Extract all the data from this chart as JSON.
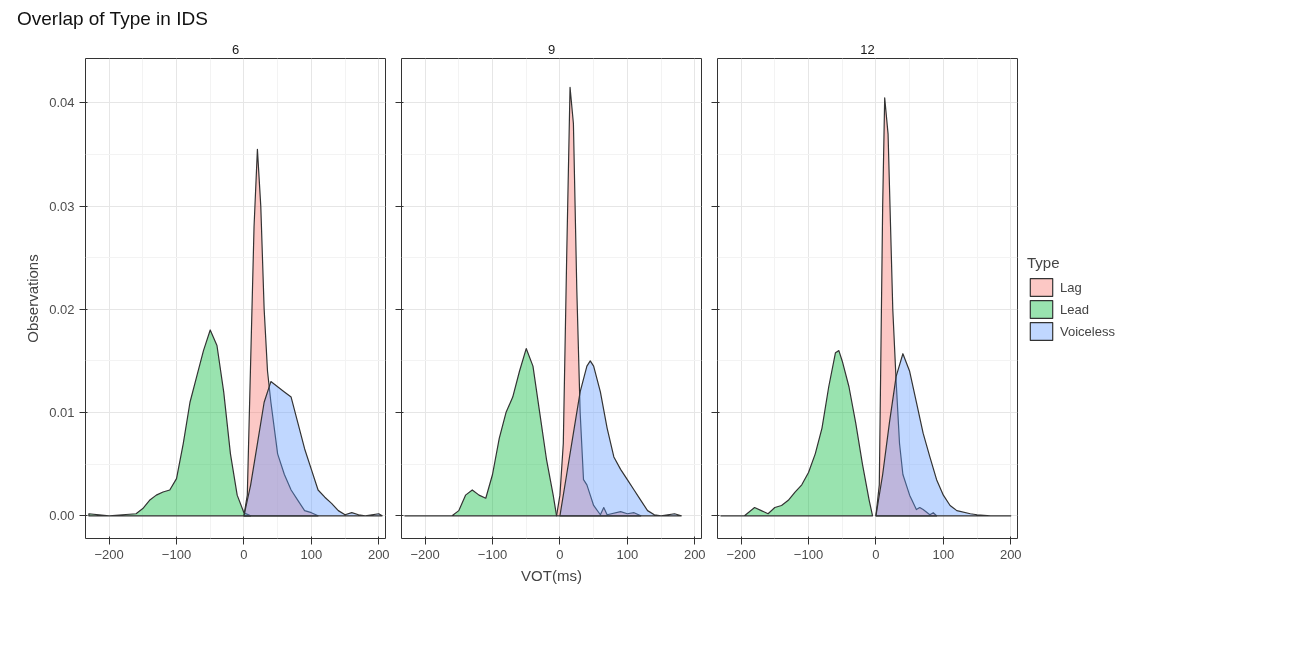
{
  "chart_data": [
    {
      "type": "area",
      "title": "Overlap of Type in IDS",
      "subtitle": "6",
      "ylabel": "Observations",
      "xlim": [
        -235,
        210
      ],
      "ylim": [
        -0.0022,
        0.0443
      ],
      "xticks": [
        -200,
        -100,
        0,
        100,
        200
      ],
      "yticks": [
        {
          "value": 0,
          "label": "0.00"
        },
        {
          "value": 0.01,
          "label": "0.01"
        },
        {
          "value": 0.02,
          "label": "0.02"
        },
        {
          "value": 0.03,
          "label": "0.03"
        },
        {
          "value": 0.04,
          "label": "0.04"
        }
      ],
      "grid": true,
      "series": [
        {
          "color": "#f8766d",
          "x": [
            0,
            5,
            10,
            15,
            20,
            25,
            30,
            35,
            40,
            50,
            60,
            70,
            80,
            90,
            100,
            110
          ],
          "values": [
            0,
            0.002,
            0.015,
            0.028,
            0.0355,
            0.03,
            0.02,
            0.014,
            0.011,
            0.006,
            0.004,
            0.0025,
            0.0015,
            0.0005,
            0.0003,
            0
          ]
        },
        {
          "color": "#00ba38",
          "x": [
            -230,
            -200,
            -180,
            -160,
            -150,
            -140,
            -130,
            -120,
            -110,
            -100,
            -90,
            -80,
            -70,
            -60,
            -50,
            -40,
            -30,
            -20,
            -10,
            0,
            10
          ],
          "values": [
            0.0002,
            0,
            0.0001,
            0.0002,
            0.0007,
            0.0015,
            0.002,
            0.0023,
            0.0025,
            0.0036,
            0.007,
            0.011,
            0.0135,
            0.016,
            0.018,
            0.0165,
            0.012,
            0.006,
            0.002,
            0.0003,
            0
          ]
        },
        {
          "color": "#619cff",
          "x": [
            0,
            10,
            20,
            30,
            40,
            50,
            60,
            70,
            80,
            90,
            100,
            110,
            120,
            130,
            140,
            150,
            160,
            170,
            180,
            200,
            205
          ],
          "values": [
            0,
            0.003,
            0.007,
            0.011,
            0.013,
            0.0125,
            0.012,
            0.0115,
            0.009,
            0.0065,
            0.0045,
            0.0025,
            0.0018,
            0.0012,
            0.0005,
            0.0001,
            0.0003,
            0.0001,
            0,
            0.0002,
            0
          ]
        }
      ]
    },
    {
      "type": "area",
      "subtitle": "9",
      "xlabel": "VOT(ms)",
      "xlim": [
        -235,
        210
      ],
      "ylim": [
        -0.0022,
        0.0443
      ],
      "xticks": [
        -200,
        -100,
        0,
        100,
        200
      ],
      "yticks": [
        0,
        0.01,
        0.02,
        0.03,
        0.04
      ],
      "grid": true,
      "tick_labels": "x",
      "series": [
        {
          "color": "#f8766d",
          "x": [
            -5,
            0,
            5,
            10,
            15,
            20,
            25,
            30,
            35,
            40,
            45,
            50,
            60,
            65,
            70,
            90,
            100,
            110,
            120
          ],
          "values": [
            0,
            0.002,
            0.007,
            0.025,
            0.0415,
            0.038,
            0.022,
            0.01,
            0.0035,
            0.003,
            0.002,
            0.001,
            0.0001,
            0.0008,
            0.0001,
            0.0004,
            0.0002,
            0.0003,
            0
          ]
        },
        {
          "color": "#00ba38",
          "x": [
            -230,
            -160,
            -150,
            -140,
            -130,
            -120,
            -110,
            -100,
            -90,
            -80,
            -70,
            -60,
            -50,
            -40,
            -30,
            -20,
            -10,
            -5
          ],
          "values": [
            0,
            0,
            0.0005,
            0.002,
            0.0025,
            0.002,
            0.0017,
            0.004,
            0.0075,
            0.01,
            0.0115,
            0.014,
            0.0162,
            0.0145,
            0.01,
            0.0055,
            0.002,
            0
          ]
        },
        {
          "color": "#619cff",
          "x": [
            0,
            10,
            20,
            30,
            40,
            45,
            50,
            60,
            70,
            80,
            90,
            100,
            110,
            120,
            130,
            140,
            150,
            170,
            180
          ],
          "values": [
            0,
            0.004,
            0.008,
            0.012,
            0.0145,
            0.015,
            0.0145,
            0.012,
            0.0085,
            0.0057,
            0.0045,
            0.0035,
            0.0025,
            0.0015,
            0.0005,
            0.0001,
            0,
            0.0002,
            0
          ]
        }
      ]
    },
    {
      "type": "area",
      "subtitle": "12",
      "xlim": [
        -235,
        210
      ],
      "ylim": [
        -0.0022,
        0.0443
      ],
      "xticks": [
        -200,
        -100,
        0,
        100,
        200
      ],
      "yticks": [
        0,
        0.01,
        0.02,
        0.03,
        0.04
      ],
      "grid": true,
      "tick_labels": "x",
      "legend": "right",
      "legend_title": "Type",
      "series": [
        {
          "name": "Lag",
          "color": "#f8766d",
          "x": [
            0,
            5,
            10,
            13,
            18,
            25,
            30,
            35,
            40,
            50,
            60,
            65,
            70,
            80,
            85,
            90
          ],
          "values": [
            0,
            0.003,
            0.03,
            0.0405,
            0.037,
            0.02,
            0.013,
            0.007,
            0.004,
            0.002,
            0.0006,
            0.0008,
            0.0006,
            0.0001,
            0.0003,
            0
          ]
        },
        {
          "name": "Lead",
          "color": "#00ba38",
          "x": [
            -230,
            -195,
            -180,
            -170,
            -160,
            -150,
            -140,
            -130,
            -120,
            -110,
            -100,
            -90,
            -80,
            -70,
            -60,
            -55,
            -50,
            -40,
            -30,
            -20,
            -10,
            -5
          ],
          "values": [
            0,
            0,
            0.0008,
            0.0005,
            0.0002,
            0.0008,
            0.001,
            0.0015,
            0.0023,
            0.003,
            0.0042,
            0.006,
            0.0085,
            0.0125,
            0.0158,
            0.016,
            0.015,
            0.0125,
            0.009,
            0.005,
            0.0015,
            0
          ]
        },
        {
          "name": "Voiceless",
          "color": "#619cff",
          "x": [
            0,
            10,
            20,
            30,
            40,
            50,
            60,
            70,
            80,
            90,
            100,
            110,
            120,
            140,
            150,
            170,
            200
          ],
          "values": [
            0,
            0.004,
            0.009,
            0.0135,
            0.0157,
            0.014,
            0.011,
            0.008,
            0.0057,
            0.0035,
            0.002,
            0.001,
            0.0005,
            0.0002,
            0.0001,
            0,
            0
          ]
        }
      ]
    }
  ]
}
